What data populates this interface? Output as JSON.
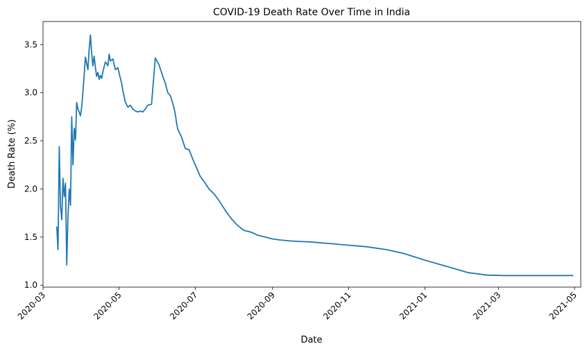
{
  "chart_data": {
    "type": "line",
    "title": "COVID-19 Death Rate Over Time in India",
    "xlabel": "Date",
    "ylabel": "Death Rate (%)",
    "xlim": [
      "2020-03-01",
      "2021-05-06"
    ],
    "ylim": [
      0.98,
      3.74
    ],
    "grid": false,
    "legend": "none",
    "line_color": "#1f77b4",
    "x_ticks": [
      "2020-03",
      "2020-05",
      "2020-07",
      "2020-09",
      "2020-11",
      "2021-01",
      "2021-03",
      "2021-05"
    ],
    "y_ticks": [
      "1.0",
      "1.5",
      "2.0",
      "2.5",
      "3.0",
      "3.5"
    ],
    "series": [
      {
        "x": [
          "2020-03-12",
          "2020-03-13",
          "2020-03-14",
          "2020-03-15",
          "2020-03-16",
          "2020-03-17",
          "2020-03-18",
          "2020-03-19",
          "2020-03-20",
          "2020-03-21",
          "2020-03-22",
          "2020-03-23",
          "2020-03-24",
          "2020-03-25",
          "2020-03-26",
          "2020-03-27",
          "2020-03-28",
          "2020-03-29",
          "2020-03-30",
          "2020-03-31",
          "2020-04-01",
          "2020-04-02",
          "2020-04-04",
          "2020-04-06",
          "2020-04-07",
          "2020-04-08",
          "2020-04-09",
          "2020-04-10",
          "2020-04-11",
          "2020-04-12",
          "2020-04-13",
          "2020-04-14",
          "2020-04-15",
          "2020-04-16",
          "2020-04-17",
          "2020-04-18",
          "2020-04-20",
          "2020-04-22",
          "2020-04-23",
          "2020-04-24",
          "2020-04-26",
          "2020-04-28",
          "2020-04-30",
          "2020-05-01",
          "2020-05-02",
          "2020-05-03",
          "2020-05-04",
          "2020-05-06",
          "2020-05-08",
          "2020-05-10",
          "2020-05-12",
          "2020-05-14",
          "2020-05-16",
          "2020-05-18",
          "2020-05-20",
          "2020-05-22",
          "2020-05-24",
          "2020-05-27",
          "2020-05-30",
          "2020-06-02",
          "2020-06-05",
          "2020-06-07",
          "2020-06-09",
          "2020-06-11",
          "2020-06-13",
          "2020-06-14",
          "2020-06-15",
          "2020-06-16",
          "2020-06-17",
          "2020-06-20",
          "2020-06-23",
          "2020-06-26",
          "2020-06-29",
          "2020-07-02",
          "2020-07-05",
          "2020-07-08",
          "2020-07-12",
          "2020-07-16",
          "2020-07-19",
          "2020-07-22",
          "2020-07-26",
          "2020-07-30",
          "2020-08-04",
          "2020-08-09",
          "2020-08-15",
          "2020-08-20",
          "2020-08-26",
          "2020-09-01",
          "2020-09-07",
          "2020-09-15",
          "2020-09-22",
          "2020-10-01",
          "2020-10-10",
          "2020-10-20",
          "2020-11-01",
          "2020-11-15",
          "2020-12-01",
          "2020-12-15",
          "2021-01-01",
          "2021-01-20",
          "2021-02-05",
          "2021-02-20",
          "2021-03-05",
          "2021-03-15",
          "2021-03-25",
          "2021-04-05",
          "2021-04-15",
          "2021-04-22",
          "2021-04-27",
          "2021-04-30"
        ],
        "y": [
          1.61,
          1.37,
          2.44,
          1.82,
          1.68,
          2.11,
          1.92,
          2.06,
          1.21,
          1.72,
          2.0,
          1.83,
          2.75,
          2.25,
          2.63,
          2.51,
          2.9,
          2.83,
          2.8,
          2.76,
          2.85,
          3.0,
          3.37,
          3.24,
          3.45,
          3.6,
          3.41,
          3.28,
          3.38,
          3.26,
          3.17,
          3.21,
          3.14,
          3.18,
          3.15,
          3.22,
          3.32,
          3.28,
          3.4,
          3.33,
          3.35,
          3.24,
          3.26,
          3.2,
          3.15,
          3.1,
          3.02,
          2.9,
          2.85,
          2.87,
          2.83,
          2.81,
          2.8,
          2.81,
          2.8,
          2.83,
          2.87,
          2.88,
          3.36,
          3.29,
          3.17,
          3.1,
          3.0,
          2.97,
          2.89,
          2.84,
          2.78,
          2.69,
          2.62,
          2.54,
          2.42,
          2.41,
          2.31,
          2.22,
          2.13,
          2.08,
          2.0,
          1.95,
          1.9,
          1.84,
          1.76,
          1.69,
          1.62,
          1.57,
          1.55,
          1.52,
          1.5,
          1.48,
          1.47,
          1.46,
          1.455,
          1.45,
          1.44,
          1.43,
          1.415,
          1.4,
          1.37,
          1.33,
          1.26,
          1.19,
          1.13,
          1.105,
          1.1,
          1.1,
          1.1,
          1.1,
          1.1,
          1.1,
          1.1,
          1.1
        ]
      }
    ]
  }
}
